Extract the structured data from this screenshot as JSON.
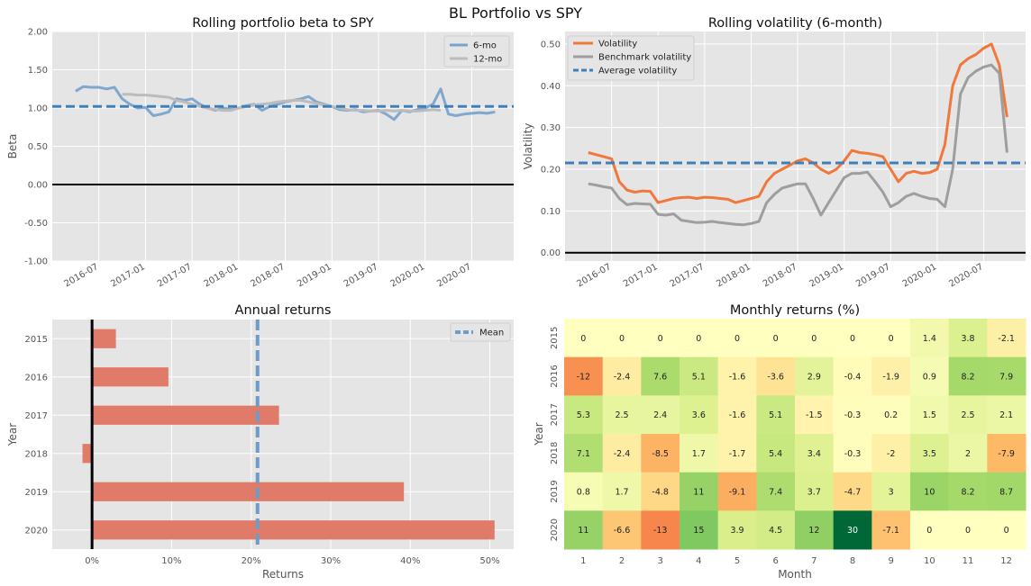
{
  "suptitle": "BL Portfolio vs SPY",
  "chart_data": [
    {
      "id": "beta",
      "type": "line",
      "title": "Rolling portfolio beta to SPY",
      "xlabel": "",
      "ylabel": "Beta",
      "ylim": [
        -1.0,
        2.0
      ],
      "yticks": [
        "-1.00",
        "-0.50",
        "0.00",
        "0.50",
        "1.00",
        "1.50",
        "2.00"
      ],
      "xticks": [
        "2016-07",
        "2017-01",
        "2017-07",
        "2018-01",
        "2018-07",
        "2019-01",
        "2019-07",
        "2020-01",
        "2020-07"
      ],
      "legend": "top-right",
      "hline_mean": 1.02,
      "zero_line": 0.0,
      "series": [
        {
          "name": "6-mo",
          "color": "#7aa3cc",
          "x": [
            "2016-04-01",
            "2016-05-01",
            "2016-06-01",
            "2016-07-01",
            "2016-08-01",
            "2016-09-01",
            "2016-10-01",
            "2016-11-01",
            "2016-12-01",
            "2017-01-01",
            "2017-02-01",
            "2017-03-01",
            "2017-04-01",
            "2017-05-01",
            "2017-06-01",
            "2017-07-01",
            "2017-08-01",
            "2017-09-01",
            "2017-10-01",
            "2017-11-01",
            "2017-12-01",
            "2018-01-01",
            "2018-02-01",
            "2018-03-01",
            "2018-04-01",
            "2018-05-01",
            "2018-06-01",
            "2018-07-01",
            "2018-08-01",
            "2018-09-01",
            "2018-10-01",
            "2018-11-01",
            "2018-12-01",
            "2019-01-01",
            "2019-02-01",
            "2019-03-01",
            "2019-04-01",
            "2019-05-01",
            "2019-06-01",
            "2019-07-01",
            "2019-08-01",
            "2019-09-01",
            "2019-10-01",
            "2019-11-01",
            "2019-12-01",
            "2020-01-01",
            "2020-02-01",
            "2020-03-01",
            "2020-04-01",
            "2020-05-01",
            "2020-06-01",
            "2020-07-01",
            "2020-08-01",
            "2020-09-01",
            "2020-10-01"
          ],
          "y": [
            1.22,
            1.28,
            1.27,
            1.27,
            1.25,
            1.27,
            1.12,
            1.05,
            1.0,
            1.01,
            0.9,
            0.92,
            0.95,
            1.12,
            1.1,
            1.12,
            1.05,
            1.0,
            0.97,
            1.0,
            0.98,
            1.0,
            1.03,
            1.05,
            0.97,
            1.02,
            1.05,
            1.08,
            1.1,
            1.12,
            1.15,
            1.08,
            1.05,
            1.02,
            0.98,
            0.97,
            0.98,
            0.95,
            0.96,
            0.97,
            0.92,
            0.85,
            0.97,
            0.95,
            0.98,
            1.0,
            1.05,
            1.25,
            0.92,
            0.9,
            0.92,
            0.93,
            0.94,
            0.93,
            0.95
          ]
        },
        {
          "name": "12-mo",
          "color": "#bcbcbc",
          "x": [
            "2016-10-01",
            "2016-11-01",
            "2016-12-01",
            "2017-01-01",
            "2017-02-01",
            "2017-03-01",
            "2017-04-01",
            "2017-05-01",
            "2017-06-01",
            "2017-07-01",
            "2017-08-01",
            "2017-09-01",
            "2017-10-01",
            "2017-11-01",
            "2017-12-01",
            "2018-01-01",
            "2018-02-01",
            "2018-03-01",
            "2018-04-01",
            "2018-05-01",
            "2018-06-01",
            "2018-07-01",
            "2018-08-01",
            "2018-09-01",
            "2018-10-01",
            "2018-11-01",
            "2018-12-01",
            "2019-01-01",
            "2019-02-01",
            "2019-03-01",
            "2019-04-01",
            "2019-05-01",
            "2019-06-01",
            "2019-07-01",
            "2019-08-01",
            "2019-09-01",
            "2019-10-01",
            "2019-11-01",
            "2019-12-01",
            "2020-01-01",
            "2020-02-01",
            "2020-03-01"
          ],
          "y": [
            1.18,
            1.18,
            1.17,
            1.17,
            1.16,
            1.15,
            1.14,
            1.1,
            1.08,
            1.05,
            1.02,
            1.0,
            0.98,
            0.97,
            0.97,
            1.0,
            1.02,
            1.04,
            1.05,
            1.06,
            1.08,
            1.09,
            1.1,
            1.1,
            1.08,
            1.06,
            1.04,
            1.02,
            1.0,
            0.98,
            0.97,
            0.97,
            0.96,
            0.96,
            0.97,
            0.96,
            0.97,
            0.96,
            0.96,
            0.97,
            0.98,
            0.97
          ]
        }
      ]
    },
    {
      "id": "vol",
      "type": "line",
      "title": "Rolling volatility (6-month)",
      "xlabel": "",
      "ylabel": "Volatility",
      "ylim": [
        -0.02,
        0.53
      ],
      "yticks": [
        "0.00",
        "0.10",
        "0.20",
        "0.30",
        "0.40",
        "0.50"
      ],
      "xticks": [
        "2016-07",
        "2017-01",
        "2017-07",
        "2018-01",
        "2018-07",
        "2019-01",
        "2019-07",
        "2020-01",
        "2020-07"
      ],
      "legend": "top-left",
      "hline_mean": 0.215,
      "zero_line": 0.0,
      "mean_label": "Average volatility",
      "mean_color": "#3f7fb8",
      "series": [
        {
          "name": "Volatility",
          "color": "#f0783c",
          "x": [
            "2016-04-01",
            "2016-05-01",
            "2016-06-01",
            "2016-07-01",
            "2016-08-01",
            "2016-09-01",
            "2016-10-01",
            "2016-11-01",
            "2016-12-01",
            "2017-01-01",
            "2017-02-01",
            "2017-03-01",
            "2017-04-01",
            "2017-05-01",
            "2017-06-01",
            "2017-07-01",
            "2017-08-01",
            "2017-09-01",
            "2017-10-01",
            "2017-11-01",
            "2017-12-01",
            "2018-01-01",
            "2018-02-01",
            "2018-03-01",
            "2018-04-01",
            "2018-05-01",
            "2018-06-01",
            "2018-07-01",
            "2018-08-01",
            "2018-09-01",
            "2018-10-01",
            "2018-11-01",
            "2018-12-01",
            "2019-01-01",
            "2019-02-01",
            "2019-03-01",
            "2019-04-01",
            "2019-05-01",
            "2019-06-01",
            "2019-07-01",
            "2019-08-01",
            "2019-09-01",
            "2019-10-01",
            "2019-11-01",
            "2019-12-01",
            "2020-01-01",
            "2020-02-01",
            "2020-03-01",
            "2020-04-01",
            "2020-05-01",
            "2020-06-01",
            "2020-07-01",
            "2020-08-01",
            "2020-09-01",
            "2020-10-01"
          ],
          "y": [
            0.24,
            0.235,
            0.23,
            0.225,
            0.17,
            0.15,
            0.145,
            0.148,
            0.147,
            0.12,
            0.125,
            0.13,
            0.132,
            0.133,
            0.13,
            0.133,
            0.132,
            0.13,
            0.128,
            0.12,
            0.125,
            0.13,
            0.135,
            0.17,
            0.19,
            0.2,
            0.21,
            0.22,
            0.225,
            0.215,
            0.2,
            0.19,
            0.2,
            0.22,
            0.245,
            0.24,
            0.238,
            0.235,
            0.23,
            0.2,
            0.17,
            0.19,
            0.195,
            0.19,
            0.192,
            0.2,
            0.26,
            0.4,
            0.45,
            0.465,
            0.475,
            0.49,
            0.5,
            0.45,
            0.325
          ]
        },
        {
          "name": "Benchmark volatility",
          "color": "#9e9e9e",
          "x": [
            "2016-04-01",
            "2016-05-01",
            "2016-06-01",
            "2016-07-01",
            "2016-08-01",
            "2016-09-01",
            "2016-10-01",
            "2016-11-01",
            "2016-12-01",
            "2017-01-01",
            "2017-02-01",
            "2017-03-01",
            "2017-04-01",
            "2017-05-01",
            "2017-06-01",
            "2017-07-01",
            "2017-08-01",
            "2017-09-01",
            "2017-10-01",
            "2017-11-01",
            "2017-12-01",
            "2018-01-01",
            "2018-02-01",
            "2018-03-01",
            "2018-04-01",
            "2018-05-01",
            "2018-06-01",
            "2018-07-01",
            "2018-08-01",
            "2018-09-01",
            "2018-10-01",
            "2018-11-01",
            "2018-12-01",
            "2019-01-01",
            "2019-02-01",
            "2019-03-01",
            "2019-04-01",
            "2019-05-01",
            "2019-06-01",
            "2019-07-01",
            "2019-08-01",
            "2019-09-01",
            "2019-10-01",
            "2019-11-01",
            "2019-12-01",
            "2020-01-01",
            "2020-02-01",
            "2020-03-01",
            "2020-04-01",
            "2020-05-01",
            "2020-06-01",
            "2020-07-01",
            "2020-08-01",
            "2020-09-01",
            "2020-10-01"
          ],
          "y": [
            0.165,
            0.162,
            0.158,
            0.155,
            0.13,
            0.115,
            0.118,
            0.117,
            0.116,
            0.092,
            0.09,
            0.093,
            0.078,
            0.075,
            0.072,
            0.073,
            0.075,
            0.072,
            0.07,
            0.068,
            0.067,
            0.07,
            0.075,
            0.12,
            0.14,
            0.155,
            0.16,
            0.165,
            0.165,
            0.13,
            0.09,
            0.12,
            0.15,
            0.18,
            0.19,
            0.19,
            0.193,
            0.17,
            0.145,
            0.11,
            0.12,
            0.135,
            0.142,
            0.135,
            0.13,
            0.128,
            0.11,
            0.2,
            0.38,
            0.42,
            0.435,
            0.445,
            0.45,
            0.43,
            0.24
          ]
        }
      ]
    },
    {
      "id": "annual",
      "type": "bar",
      "orientation": "horizontal",
      "title": "Annual returns",
      "xlabel": "Returns",
      "ylabel": "Year",
      "categories": [
        "2015",
        "2016",
        "2017",
        "2018",
        "2019",
        "2020"
      ],
      "values": [
        3.0,
        9.6,
        23.5,
        -1.2,
        39.2,
        50.6
      ],
      "xlim": [
        -5,
        53
      ],
      "xticks": [
        "0%",
        "10%",
        "20%",
        "30%",
        "40%",
        "50%"
      ],
      "mean": 20.8,
      "mean_label": "Mean",
      "legend": "top-right",
      "bar_color": "#e07b6a"
    },
    {
      "id": "monthly",
      "type": "heatmap",
      "title": "Monthly returns (%)",
      "xlabel": "Month",
      "ylabel": "Year",
      "cols": [
        "1",
        "2",
        "3",
        "4",
        "5",
        "6",
        "7",
        "8",
        "9",
        "10",
        "11",
        "12"
      ],
      "rows": [
        "2015",
        "2016",
        "2017",
        "2018",
        "2019",
        "2020"
      ],
      "values": [
        [
          "0",
          "0",
          "0",
          "0",
          "0",
          "0",
          "0",
          "0",
          "0",
          "1.4",
          "3.8",
          "-2.1"
        ],
        [
          "-12",
          "-2.4",
          "7.6",
          "5.1",
          "-1.6",
          "-3.6",
          "2.9",
          "-0.4",
          "-1.9",
          "0.9",
          "8.2",
          "7.9"
        ],
        [
          "5.3",
          "2.5",
          "2.4",
          "3.6",
          "-1.6",
          "5.1",
          "-1.5",
          "-0.3",
          "0.2",
          "1.5",
          "2.5",
          "2.1"
        ],
        [
          "7.1",
          "-2.4",
          "-8.5",
          "1.7",
          "-1.7",
          "5.4",
          "3.4",
          "-0.3",
          "-2",
          "3.5",
          "2",
          "-7.9"
        ],
        [
          "0.8",
          "1.7",
          "-4.8",
          "11",
          "-9.1",
          "7.4",
          "3.7",
          "-4.7",
          "3",
          "10",
          "8.2",
          "8.7"
        ],
        [
          "11",
          "-6.6",
          "-13",
          "15",
          "3.9",
          "4.5",
          "12",
          "30",
          "-7.1",
          "0",
          "0",
          "0"
        ]
      ]
    }
  ]
}
